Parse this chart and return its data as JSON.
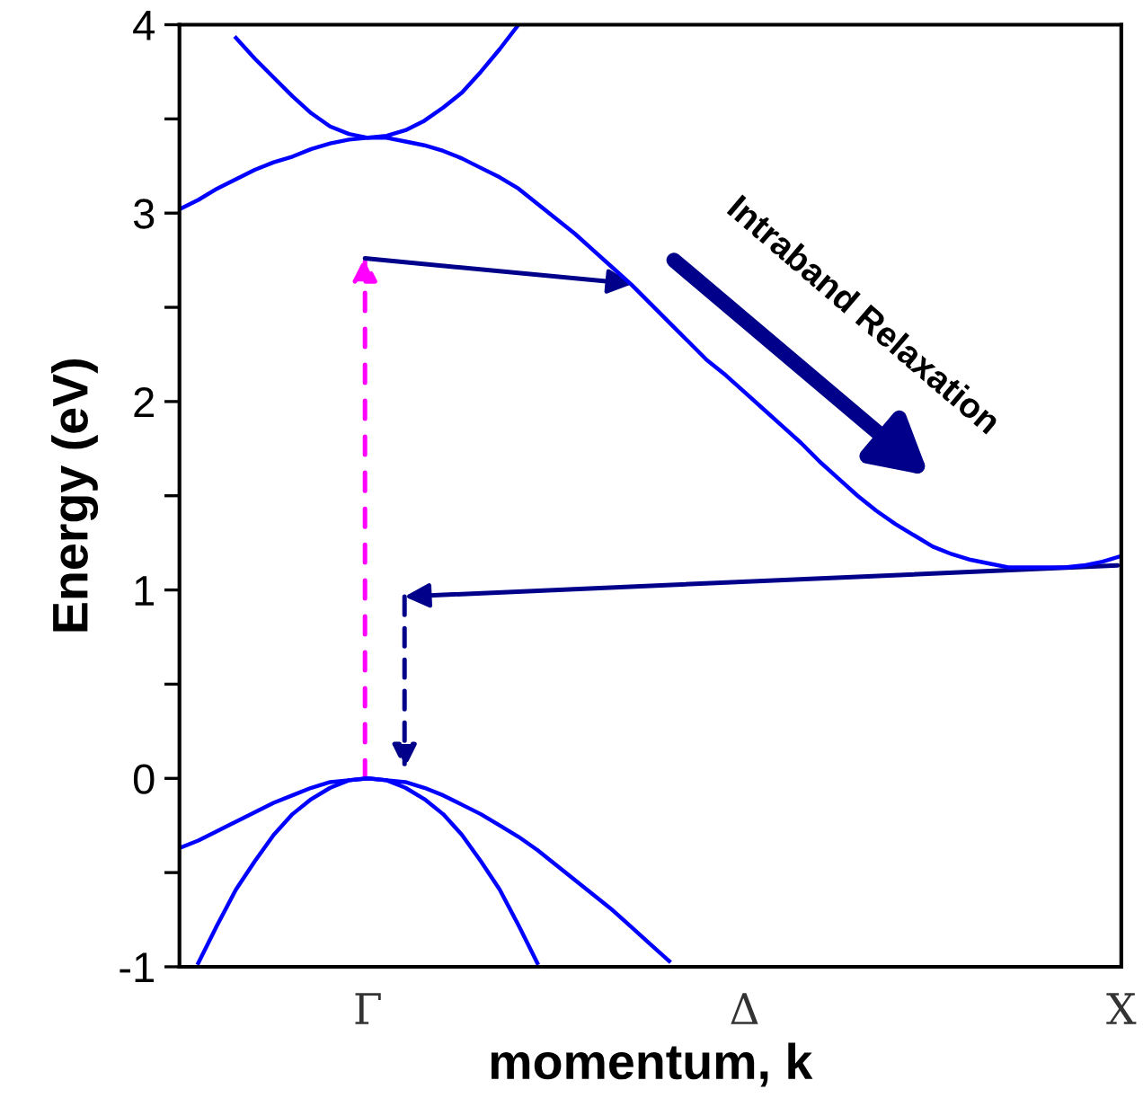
{
  "chart_data": {
    "type": "line",
    "xlabel": "momentum, k",
    "ylabel": "Energy (eV)",
    "categories": [
      null,
      null,
      null,
      null,
      null,
      null,
      null,
      null,
      null,
      null,
      "Γ",
      null,
      null,
      null,
      null,
      null,
      null,
      null,
      null,
      null,
      null,
      null,
      null,
      null,
      null,
      null,
      null,
      null,
      null,
      null,
      "Δ",
      null,
      null,
      null,
      null,
      null,
      null,
      null,
      null,
      null,
      null,
      null,
      null,
      null,
      null,
      null,
      null,
      null,
      null,
      null,
      "X"
    ],
    "ylim": [
      -1,
      4
    ],
    "yticks": [
      -1,
      {
        "value": -0.5,
        "label": null
      },
      0,
      {
        "value": 0.5,
        "label": null
      },
      1,
      {
        "value": 1.5,
        "label": null
      },
      2,
      {
        "value": 2.5,
        "label": null
      },
      3,
      {
        "value": 3.5,
        "label": null
      },
      4
    ],
    "grid": false,
    "marker": "none",
    "line_style": "solid",
    "annotations": [
      "Intraband Relaxation"
    ],
    "series": [
      {
        "color": "#0000ff",
        "values": [
          null,
          -0.98,
          -0.78,
          -0.59,
          -0.44,
          -0.3,
          -0.19,
          -0.11,
          -0.05,
          -0.01,
          0,
          -0.01,
          -0.05,
          -0.11,
          -0.19,
          -0.3,
          -0.44,
          -0.59,
          -0.78,
          -0.98,
          null,
          null,
          null,
          null,
          null,
          null,
          null,
          null,
          null,
          null,
          null,
          null,
          null,
          null,
          null,
          null,
          null,
          null,
          null,
          null,
          null,
          null,
          null,
          null,
          null,
          null,
          null,
          null,
          null,
          null,
          null
        ]
      },
      {
        "color": "#0000ff",
        "values": [
          -0.37,
          -0.33,
          -0.28,
          -0.23,
          -0.18,
          -0.13,
          -0.09,
          -0.05,
          -0.02,
          -0.01,
          0,
          -0.01,
          -0.02,
          -0.05,
          -0.09,
          -0.14,
          -0.19,
          -0.25,
          -0.31,
          -0.38,
          -0.46,
          -0.54,
          -0.62,
          -0.7,
          -0.79,
          -0.88,
          -0.97,
          null,
          null,
          null,
          null,
          null,
          null,
          null,
          null,
          null,
          null,
          null,
          null,
          null,
          null,
          null,
          null,
          null,
          null,
          null,
          null,
          null,
          null,
          null,
          null
        ]
      },
      {
        "color": "#0000ff",
        "values": [
          3.02,
          3.07,
          3.13,
          3.18,
          3.23,
          3.27,
          3.3,
          3.34,
          3.37,
          3.39,
          3.4,
          3.4,
          3.38,
          3.36,
          3.33,
          3.29,
          3.24,
          3.19,
          3.13,
          3.05,
          2.97,
          2.89,
          2.8,
          2.71,
          2.62,
          2.52,
          2.42,
          2.32,
          2.22,
          2.14,
          2.05,
          1.96,
          1.87,
          1.78,
          1.68,
          1.59,
          1.5,
          1.42,
          1.35,
          1.29,
          1.23,
          1.19,
          1.16,
          1.14,
          1.12,
          1.12,
          1.12,
          1.12,
          1.13,
          1.15,
          1.18
        ]
      },
      {
        "color": "#0000ff",
        "values": [
          null,
          null,
          null,
          3.93,
          3.82,
          3.72,
          3.62,
          3.53,
          3.46,
          3.42,
          3.4,
          3.41,
          3.44,
          3.49,
          3.56,
          3.64,
          3.75,
          3.87,
          4.0,
          null,
          null,
          null,
          null,
          null,
          null,
          null,
          null,
          null,
          null,
          null,
          null,
          null,
          null,
          null,
          null,
          null,
          null,
          null,
          null,
          null,
          null,
          null,
          null,
          null,
          null,
          null,
          null,
          null,
          null,
          null,
          null
        ]
      }
    ]
  }
}
